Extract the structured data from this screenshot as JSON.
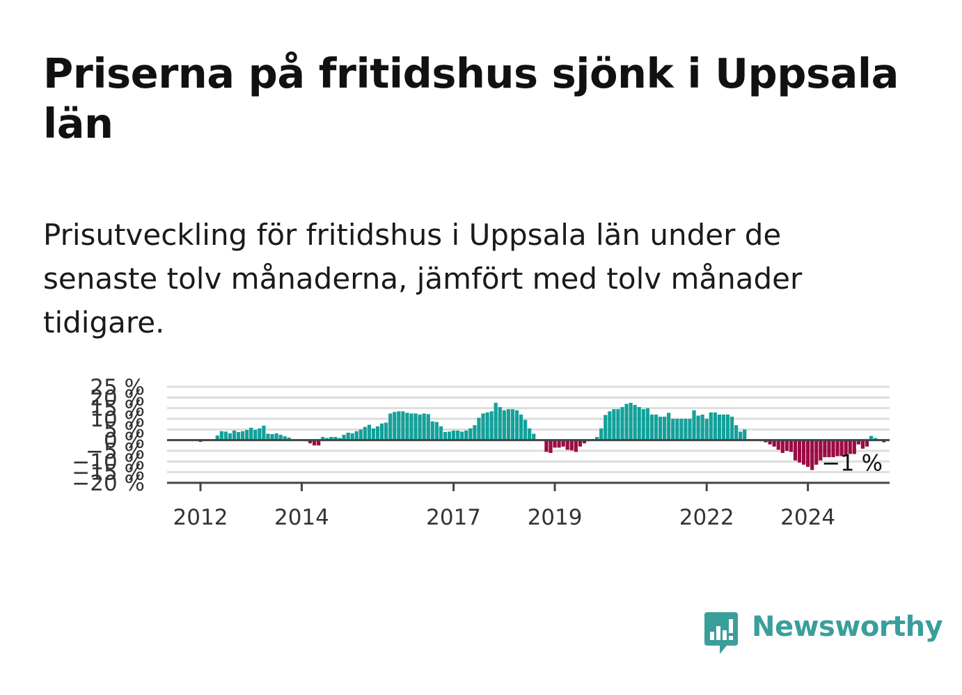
{
  "header": {
    "title": "Priserna på fritidshus sjönk i Uppsala län",
    "subtitle": "Prisutveckling för fritidshus i Uppsala län under de senaste tolv månaderna, jämfört med tolv månader tidigare."
  },
  "brand": {
    "name": "Newsworthy",
    "color": "#3a9e9b",
    "icon": "newsworthy-logo-icon"
  },
  "chart_data": {
    "type": "bar",
    "title": "",
    "xlabel": "",
    "ylabel": "",
    "ylim": [
      -20,
      25
    ],
    "y_ticks": [
      25,
      20,
      15,
      10,
      5,
      0,
      -5,
      -10,
      -15,
      -20
    ],
    "y_tick_labels": [
      "25 %",
      "20 %",
      "15 %",
      "10 %",
      "5 %",
      "0 %",
      "−5 %",
      "−10 %",
      "−15 %",
      "−20 %"
    ],
    "x_tick_labels": [
      {
        "label": "2012",
        "month_index": 6
      },
      {
        "label": "2014",
        "month_index": 30
      },
      {
        "label": "2017",
        "month_index": 66
      },
      {
        "label": "2019",
        "month_index": 90
      },
      {
        "label": "2022",
        "month_index": 126
      },
      {
        "label": "2024",
        "month_index": 150
      }
    ],
    "x_start_month": "2011-06",
    "gridlines": true,
    "positive_color": "#13a19a",
    "negative_color": "#9c0a44",
    "end_label": "−1 %",
    "values": [
      0,
      0,
      0,
      0,
      0,
      0,
      -0.8,
      0,
      0,
      0.3,
      2.2,
      4.2,
      4.0,
      3.2,
      4.5,
      3.8,
      4.2,
      4.8,
      5.8,
      4.8,
      5.5,
      6.8,
      3.0,
      2.8,
      3.2,
      2.5,
      1.8,
      1.2,
      0,
      0,
      0,
      -0.5,
      -1.5,
      -2.5,
      -2.5,
      1.5,
      1.0,
      1.5,
      1.5,
      1.0,
      2.5,
      3.5,
      3.2,
      4.2,
      5.0,
      6.2,
      7.2,
      5.5,
      6.5,
      7.8,
      8.2,
      12.5,
      13.2,
      13.5,
      13.5,
      12.8,
      12.5,
      12.5,
      12.0,
      12.5,
      12.2,
      8.8,
      8.5,
      6.5,
      3.8,
      4.0,
      4.5,
      4.5,
      4.0,
      4.5,
      5.5,
      7.0,
      10.5,
      12.5,
      13.0,
      13.5,
      17.5,
      15.5,
      14.0,
      14.5,
      14.5,
      14.0,
      12.0,
      9.5,
      5.5,
      3.0,
      0,
      0,
      -5.5,
      -6.0,
      -3.5,
      -3.5,
      -3.0,
      -4.5,
      -4.8,
      -5.5,
      -3.0,
      -1.5,
      -0.5,
      0.5,
      1.5,
      5.5,
      11.8,
      13.5,
      14.5,
      14.5,
      15.5,
      17.0,
      17.5,
      16.5,
      15.5,
      14.5,
      15.0,
      12.0,
      12.0,
      11.0,
      11.0,
      12.8,
      10.0,
      10.0,
      10.0,
      10.0,
      10.0,
      14.0,
      11.5,
      12.0,
      10.0,
      13.0,
      13.0,
      12.0,
      12.0,
      12.0,
      11.0,
      7.0,
      4.0,
      5.0,
      0.5,
      0.5,
      0.3,
      -0.5,
      -1.0,
      -2.0,
      -3.0,
      -4.5,
      -6.0,
      -5.0,
      -5.5,
      -9.5,
      -10.5,
      -11.5,
      -12.5,
      -14.0,
      -11.5,
      -9.5,
      -8.0,
      -8.0,
      -8.0,
      -7.5,
      -7.5,
      -7.0,
      -6.5,
      -6.5,
      -2.0,
      -4.0,
      -3.0,
      2.0,
      1.0,
      0,
      -1.0
    ]
  }
}
